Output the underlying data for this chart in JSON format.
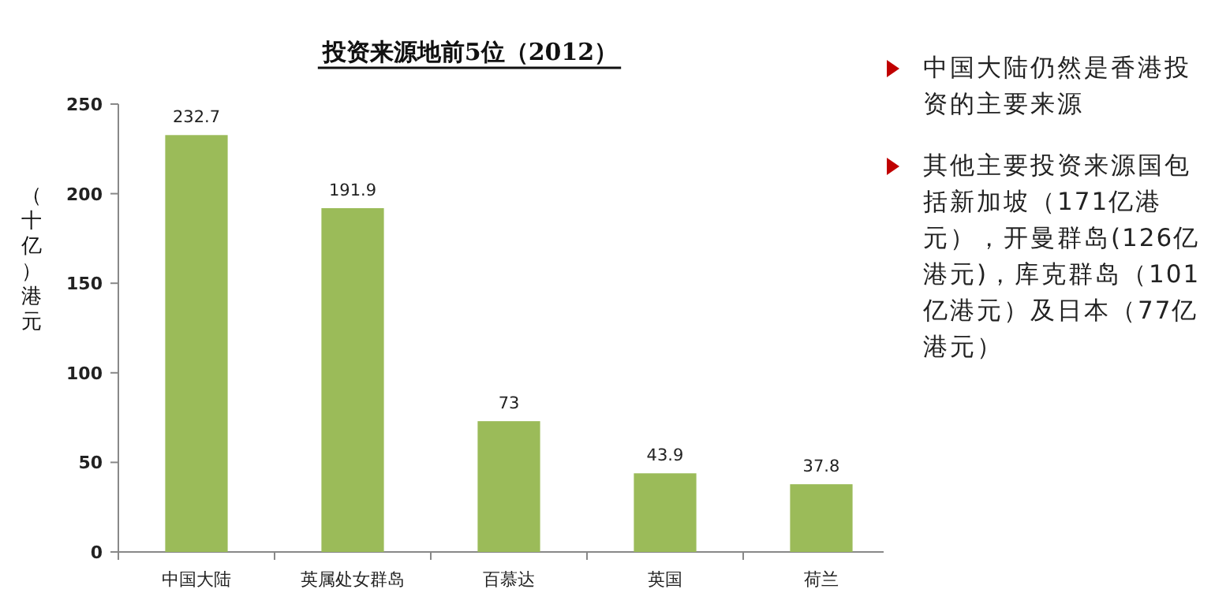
{
  "chart_data": {
    "type": "bar",
    "title": "投资来源地前5位（2012）",
    "ylabel": "（十亿）港元",
    "categories": [
      "中国大陆",
      "英属处女群岛",
      "百慕达",
      "英国",
      "荷兰"
    ],
    "values": [
      232.7,
      191.9,
      73,
      43.9,
      37.8
    ],
    "color": "#9bbb59",
    "ylim": [
      0,
      250
    ],
    "yticks": [
      0,
      50,
      100,
      150,
      200,
      250
    ],
    "data_labels": true,
    "grid": false,
    "annotations": [
      "中国大陆仍然是香港投资的主要来源",
      "其他主要投资来源国包括新加坡（171亿港元），开曼群岛(126亿港元)，库克群岛（101亿港元）及日本（77亿港元）"
    ]
  }
}
